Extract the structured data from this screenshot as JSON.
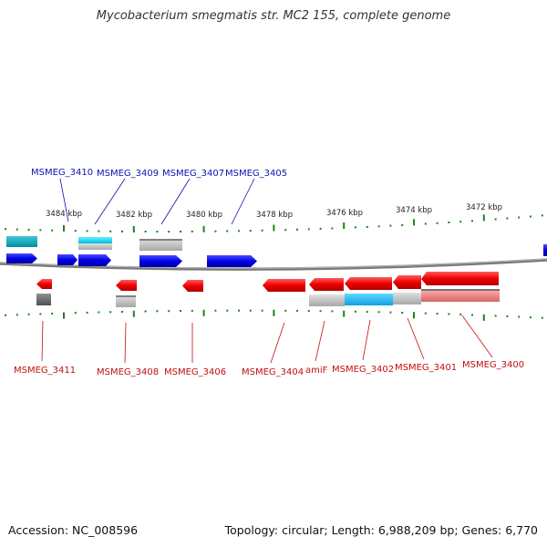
{
  "title": "Mycobacterium smegmatis str. MC2 155, complete genome",
  "footer": {
    "accession": "Accession: NC_008596",
    "topology": "Topology: circular; Length: 6,988,209 bp; Genes: 6,770"
  },
  "colors": {
    "forward": "#0000dd",
    "reverse": "#ee0000",
    "forward_label": "#1010b0",
    "reverse_label": "#c01010",
    "tick": "#208020",
    "backbone": "#808080"
  },
  "scale_labels": [
    "3484 kbp",
    "3482 kbp",
    "3480 kbp",
    "3478 kbp",
    "3476 kbp",
    "3474 kbp",
    "3472 kbp"
  ],
  "forward_labels": [
    "MSMEG_3410",
    "MSMEG_3409",
    "MSMEG_3407",
    "MSMEG_3405"
  ],
  "reverse_labels": [
    "MSMEG_3411",
    "MSMEG_3408",
    "MSMEG_3406",
    "MSMEG_3404",
    "amiF",
    "MSMEG_3402",
    "MSMEG_3401",
    "MSMEG_3400"
  ]
}
